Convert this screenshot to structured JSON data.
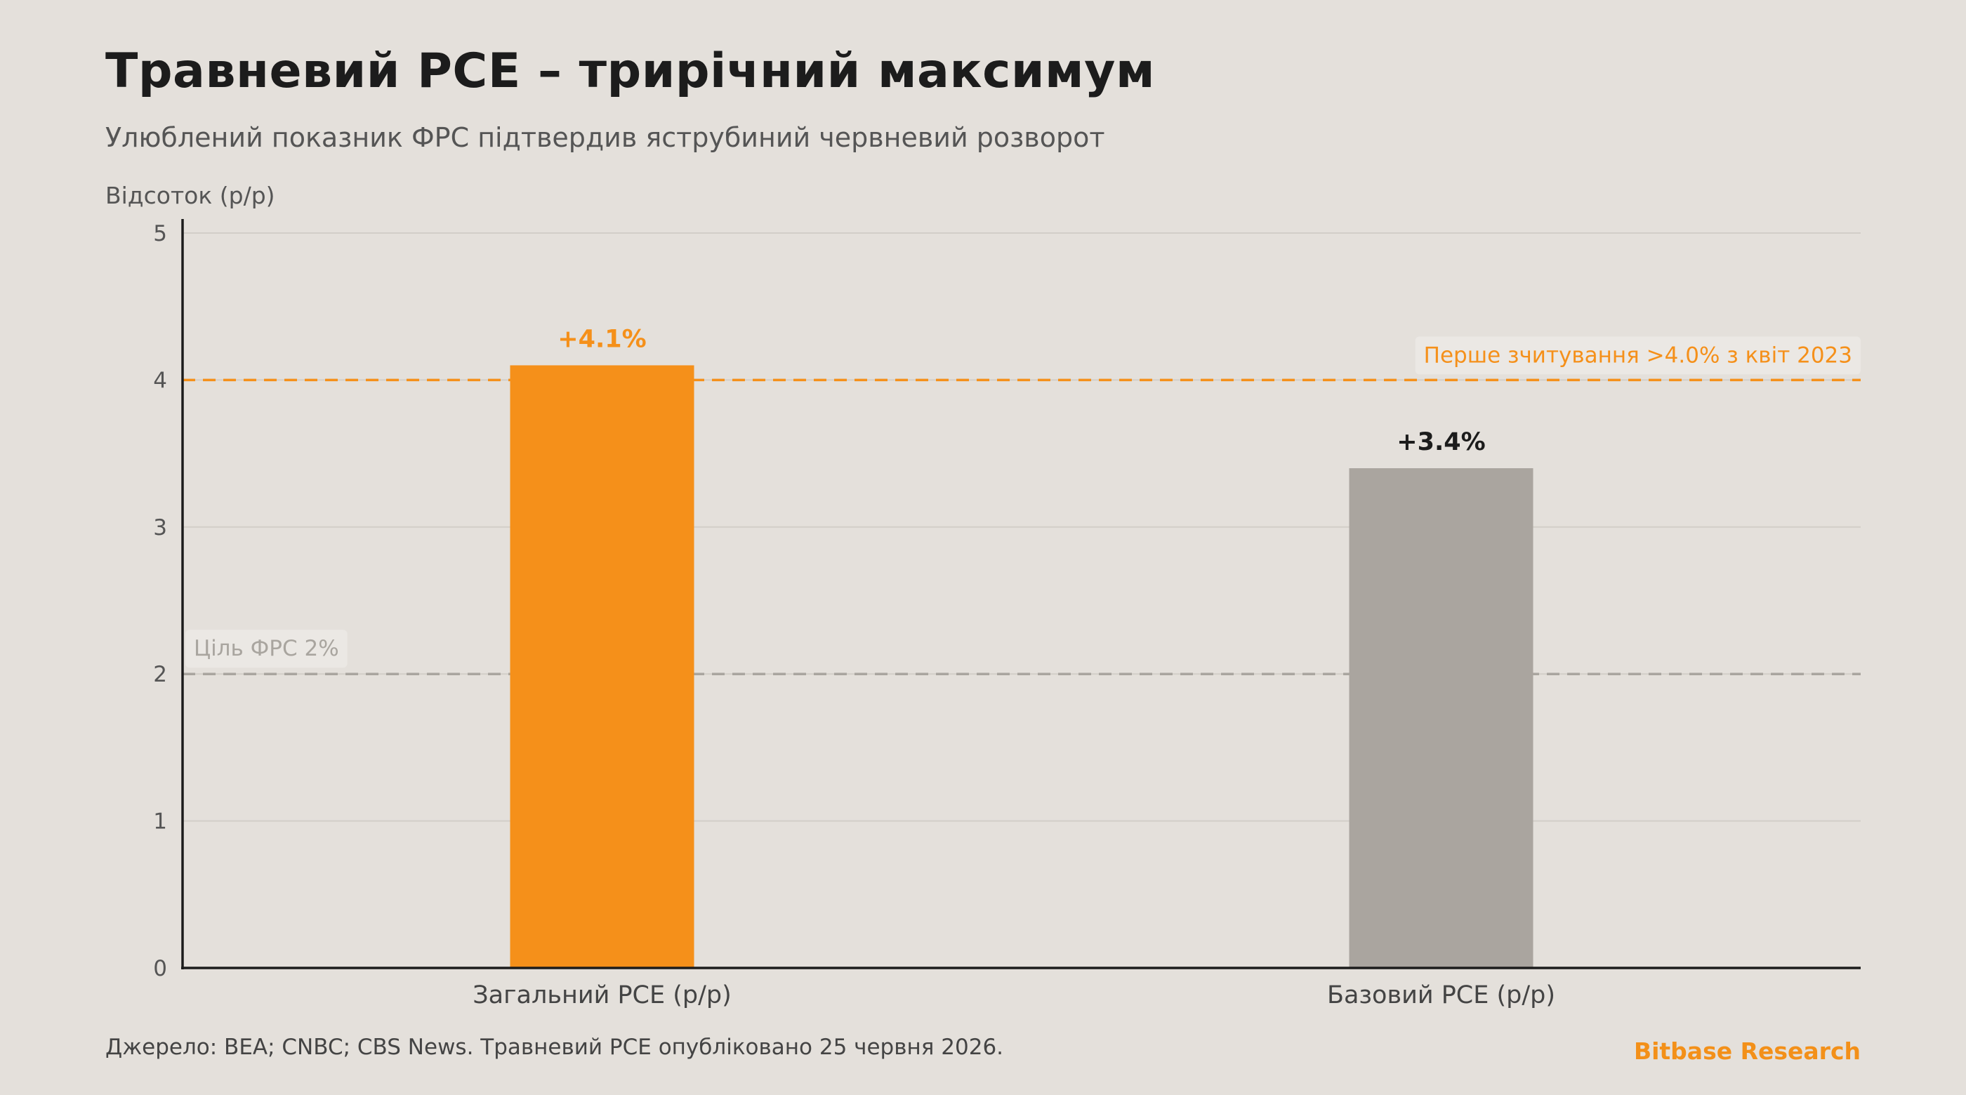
{
  "header": {
    "title": "Травневий PCE – трирічний максимум",
    "subtitle": "Улюблений показник ФРС підтвердив яструбиний червневий розворот"
  },
  "footer": {
    "source": "Джерело: BEA; CNBC; CBS News. Травневий PCE опубліковано 25 червня 2026.",
    "brand": "Bitbase Research"
  },
  "colors": {
    "accent": "#f5901a",
    "core_bar": "#aaa59f",
    "reference_gray": "#a9a59f",
    "grid": "#d2cec8",
    "axis": "#1c1c1c"
  },
  "chart_data": {
    "type": "bar",
    "ylabel": "Відсоток (р/р)",
    "ylim": [
      0,
      5
    ],
    "yticks": [
      0,
      1,
      2,
      3,
      4,
      5
    ],
    "grid": true,
    "categories": [
      "Загальний PCE (р/р)",
      "Базовий PCE (р/р)"
    ],
    "values": [
      4.1,
      3.4
    ],
    "data_labels": [
      "+4.1%",
      "+3.4%"
    ],
    "bar_colors": [
      "#f5901a",
      "#aaa59f"
    ],
    "label_colors": [
      "#f5901a",
      "#1c1c1c"
    ],
    "reference_lines": [
      {
        "value": 4.0,
        "label": "Перше зчитування >4.0% з квіт 2023",
        "color": "#f5901a",
        "label_position": "right"
      },
      {
        "value": 2.0,
        "label": "Ціль ФРС 2%",
        "color": "#a9a59f",
        "label_position": "left"
      }
    ]
  }
}
